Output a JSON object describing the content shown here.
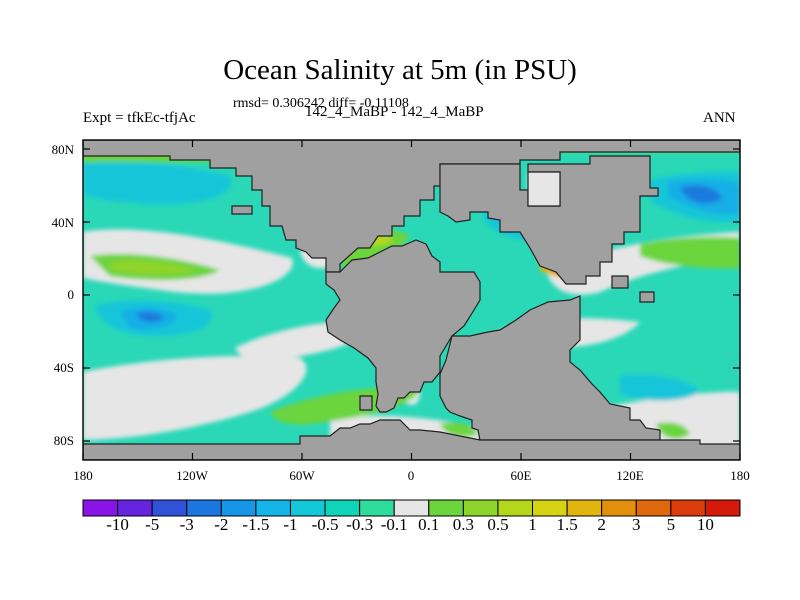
{
  "title": "Ocean Salinity at 5m (in PSU)",
  "stats_line": "rmsd= 0.306242 diff= -0.11108",
  "left_label": "Expt = tfkEc-tfjAc",
  "center_label": "142_4_MaBP - 142_4_MaBP",
  "right_label": "ANN",
  "y_ticks": [
    "80N",
    "40N",
    "0",
    "40S",
    "80S"
  ],
  "x_ticks": [
    "180",
    "120W",
    "60W",
    "0",
    "60E",
    "120E",
    "180"
  ],
  "colorbar": {
    "labels": [
      "-10",
      "-5",
      "-3",
      "-2",
      "-1.5",
      "-1",
      "-0.5",
      "-0.3",
      "-0.1",
      "0.1",
      "0.3",
      "0.5",
      "1",
      "1.5",
      "2",
      "3",
      "5",
      "10"
    ],
    "colors": [
      "#8a14e8",
      "#6525e0",
      "#2f52d8",
      "#1b77df",
      "#1596e6",
      "#14b4e8",
      "#12c8d8",
      "#10d4b8",
      "#30dc9c",
      "#e6e6e6",
      "#6cd43c",
      "#8ed42a",
      "#b4d61c",
      "#d6d214",
      "#e2b40e",
      "#e2900c",
      "#e0680c",
      "#dc3c0c",
      "#d41a0a"
    ]
  },
  "map_colors": {
    "land": "#a0a0a0",
    "near_zero": "#e6e6e6",
    "slight_negative": "#2ad8b8",
    "moderate_negative": "#18c6d8",
    "negative": "#16aee6",
    "strong_negative": "#1c7ade",
    "very_strong_negative": "#2f52d8",
    "slight_positive": "#6cd43c",
    "positive": "#8ed42a",
    "moderate_positive": "#b4d61c",
    "strong_positive": "#e2b40e",
    "very_strong_positive": "#e0680c"
  }
}
